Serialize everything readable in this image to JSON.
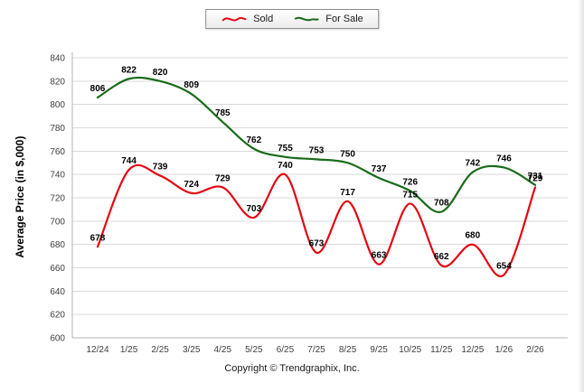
{
  "legend": {
    "sold_label": "Sold",
    "for_sale_label": "For Sale"
  },
  "footer": {
    "copyright": "Copyright © Trendgraphix, Inc."
  },
  "colors": {
    "sold": "#e30613",
    "for_sale": "#1a6b1a",
    "grid": "#d9d9d9",
    "axis": "#b3b3b3",
    "tick_text": "#404040",
    "label_text": "#000000"
  },
  "chart_data": {
    "type": "line",
    "title": "",
    "xlabel": "",
    "ylabel": "Average Price (in $,000)",
    "ylim": [
      600,
      840
    ],
    "ytick_step": 20,
    "grid": true,
    "legend_position": "top-center",
    "categories": [
      "12/24",
      "1/25",
      "2/25",
      "3/25",
      "4/25",
      "5/25",
      "6/25",
      "7/25",
      "8/25",
      "9/25",
      "10/25",
      "11/25",
      "12/25",
      "1/26",
      "2/26"
    ],
    "series": [
      {
        "name": "Sold",
        "color": "#e30613",
        "values": [
          678,
          744,
          739,
          724,
          729,
          703,
          740,
          673,
          717,
          663,
          715,
          662,
          680,
          654,
          729
        ]
      },
      {
        "name": "For Sale",
        "color": "#1a6b1a",
        "values": [
          806,
          822,
          820,
          809,
          785,
          762,
          755,
          753,
          750,
          737,
          726,
          708,
          742,
          746,
          731
        ]
      }
    ]
  }
}
